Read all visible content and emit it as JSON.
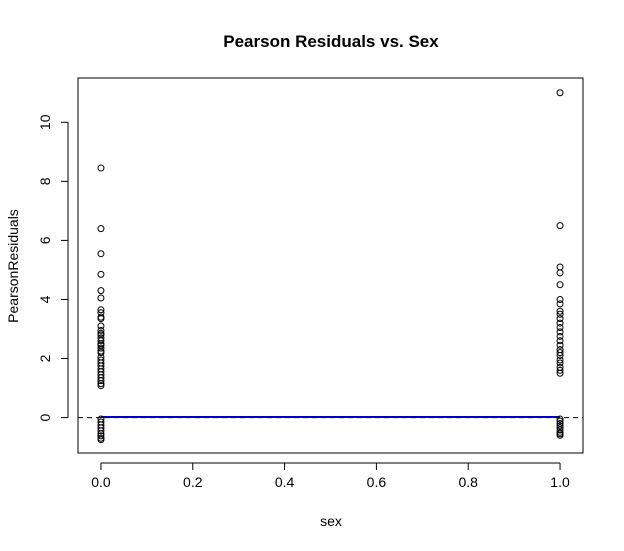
{
  "chart_data": {
    "type": "scatter",
    "title": "Pearson Residuals vs. Sex",
    "xlabel": "sex",
    "ylabel": "PearsonResiduals",
    "xlim": [
      -0.05,
      1.05
    ],
    "ylim": [
      -1.2,
      11.5
    ],
    "x_ticks": [
      0.0,
      0.2,
      0.4,
      0.6,
      0.8,
      1.0
    ],
    "x_tick_labels": [
      "0.0",
      "0.2",
      "0.4",
      "0.6",
      "0.8",
      "1.0"
    ],
    "y_ticks": [
      0,
      2,
      4,
      6,
      8,
      10
    ],
    "y_tick_labels": [
      "0",
      "2",
      "4",
      "6",
      "8",
      "10"
    ],
    "reference_line": {
      "y": 0,
      "style": "dashed",
      "color": "#000000"
    },
    "fit_line": {
      "x": [
        0,
        1
      ],
      "y": [
        0.02,
        0.02
      ],
      "color": "#0000cc"
    },
    "point_style": "open-circle",
    "grid": false,
    "series": [
      {
        "x": 0,
        "values": [
          8.45,
          6.4,
          5.55,
          4.85,
          4.3,
          4.05,
          3.65,
          3.55,
          3.4,
          3.35,
          3.1,
          2.95,
          2.85,
          2.8,
          2.7,
          2.6,
          2.5,
          2.45,
          2.35,
          2.25,
          2.2,
          2.05,
          1.95,
          1.85,
          1.75,
          1.65,
          1.55,
          1.45,
          1.35,
          1.25,
          1.15,
          1.08,
          -0.05,
          -0.15,
          -0.25,
          -0.35,
          -0.45,
          -0.55,
          -0.62,
          -0.7,
          -0.75
        ]
      },
      {
        "x": 1,
        "values": [
          11.0,
          6.5,
          5.1,
          4.9,
          4.5,
          4.0,
          3.85,
          3.6,
          3.5,
          3.35,
          3.2,
          3.05,
          2.9,
          2.75,
          2.6,
          2.45,
          2.3,
          2.2,
          2.1,
          1.95,
          1.85,
          1.7,
          1.6,
          1.5,
          -0.05,
          -0.12,
          -0.2,
          -0.28,
          -0.35,
          -0.42,
          -0.5,
          -0.55,
          -0.6
        ]
      }
    ]
  }
}
